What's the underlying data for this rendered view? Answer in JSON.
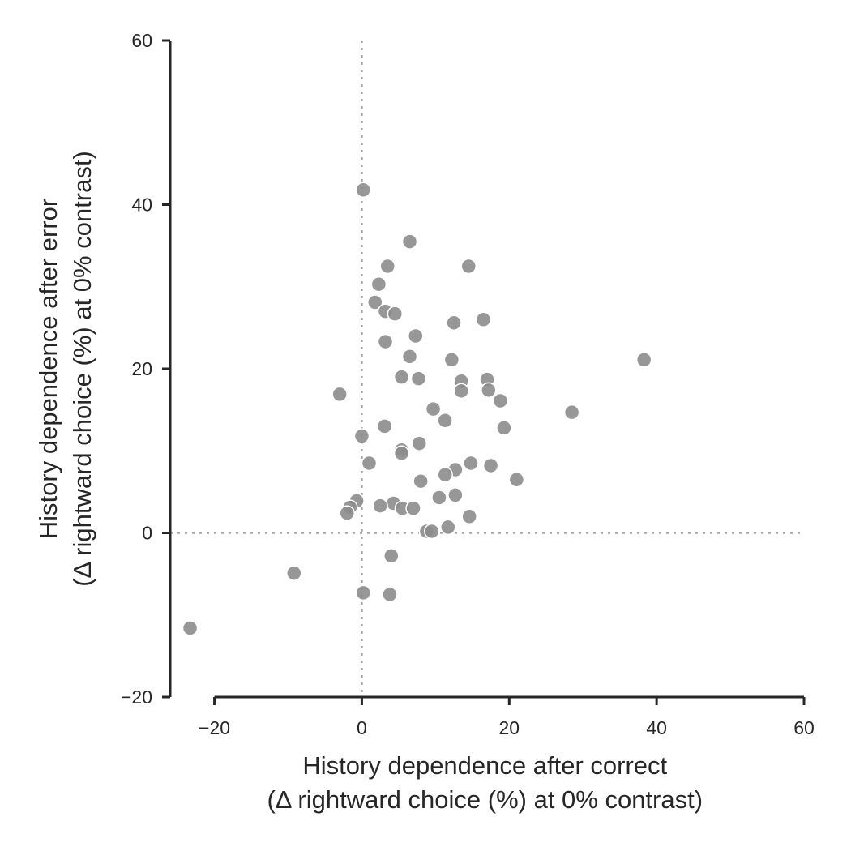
{
  "chart_data": {
    "type": "scatter",
    "xlabel": [
      "History dependence after correct",
      "(Δ rightward choice (%) at 0% contrast)"
    ],
    "ylabel": [
      "History dependence after error",
      "(Δ rightward choice (%) at 0% contrast)"
    ],
    "xlim": [
      -26,
      60
    ],
    "ylim": [
      -20,
      60
    ],
    "xticks": [
      -20,
      0,
      20,
      40,
      60
    ],
    "yticks": [
      -20,
      0,
      20,
      40,
      60
    ],
    "xtick_labels": [
      "−20",
      "0",
      "20",
      "40",
      "60"
    ],
    "ytick_labels": [
      "−20",
      "0",
      "20",
      "40",
      "60"
    ],
    "reference_lines": {
      "x": 0,
      "y": 0
    },
    "grid": false,
    "point_color": "#8c8c8c",
    "points": [
      {
        "x": 0.2,
        "y": 41.8
      },
      {
        "x": 6.5,
        "y": 35.5
      },
      {
        "x": 3.5,
        "y": 32.5
      },
      {
        "x": 14.5,
        "y": 32.5
      },
      {
        "x": 2.3,
        "y": 30.3
      },
      {
        "x": 1.8,
        "y": 28.1
      },
      {
        "x": 3.2,
        "y": 27.0
      },
      {
        "x": 4.5,
        "y": 26.7
      },
      {
        "x": 16.5,
        "y": 26.0
      },
      {
        "x": 12.5,
        "y": 25.6
      },
      {
        "x": 7.3,
        "y": 24.0
      },
      {
        "x": 3.2,
        "y": 23.3
      },
      {
        "x": 6.5,
        "y": 21.5
      },
      {
        "x": 12.2,
        "y": 21.1
      },
      {
        "x": 38.3,
        "y": 21.1
      },
      {
        "x": 5.4,
        "y": 19.0
      },
      {
        "x": 7.7,
        "y": 18.8
      },
      {
        "x": 13.5,
        "y": 18.5
      },
      {
        "x": 17.0,
        "y": 18.7
      },
      {
        "x": 17.2,
        "y": 17.4
      },
      {
        "x": 13.5,
        "y": 17.3
      },
      {
        "x": -3.0,
        "y": 16.9
      },
      {
        "x": 18.8,
        "y": 16.1
      },
      {
        "x": 9.7,
        "y": 15.1
      },
      {
        "x": 28.5,
        "y": 14.7
      },
      {
        "x": 11.3,
        "y": 13.7
      },
      {
        "x": 3.1,
        "y": 13.0
      },
      {
        "x": 19.3,
        "y": 12.8
      },
      {
        "x": 0.0,
        "y": 11.8
      },
      {
        "x": 7.8,
        "y": 10.9
      },
      {
        "x": 5.4,
        "y": 10.1
      },
      {
        "x": 5.4,
        "y": 9.7
      },
      {
        "x": 1.0,
        "y": 8.5
      },
      {
        "x": 14.8,
        "y": 8.5
      },
      {
        "x": 17.5,
        "y": 8.2
      },
      {
        "x": 12.7,
        "y": 7.7
      },
      {
        "x": 11.3,
        "y": 7.1
      },
      {
        "x": 21.0,
        "y": 6.5
      },
      {
        "x": 8.0,
        "y": 6.3
      },
      {
        "x": 12.7,
        "y": 4.6
      },
      {
        "x": 10.5,
        "y": 4.3
      },
      {
        "x": -0.7,
        "y": 3.9
      },
      {
        "x": 4.3,
        "y": 3.6
      },
      {
        "x": 2.5,
        "y": 3.3
      },
      {
        "x": 5.5,
        "y": 3.0
      },
      {
        "x": 7.0,
        "y": 3.0
      },
      {
        "x": -1.6,
        "y": 3.1
      },
      {
        "x": -2.0,
        "y": 2.4
      },
      {
        "x": 14.6,
        "y": 2.0
      },
      {
        "x": 11.7,
        "y": 0.7
      },
      {
        "x": 8.8,
        "y": 0.2
      },
      {
        "x": 9.5,
        "y": 0.2
      },
      {
        "x": 4.0,
        "y": -2.8
      },
      {
        "x": -9.2,
        "y": -4.9
      },
      {
        "x": 0.2,
        "y": -7.3
      },
      {
        "x": 3.8,
        "y": -7.5
      },
      {
        "x": -23.3,
        "y": -11.6
      }
    ]
  }
}
